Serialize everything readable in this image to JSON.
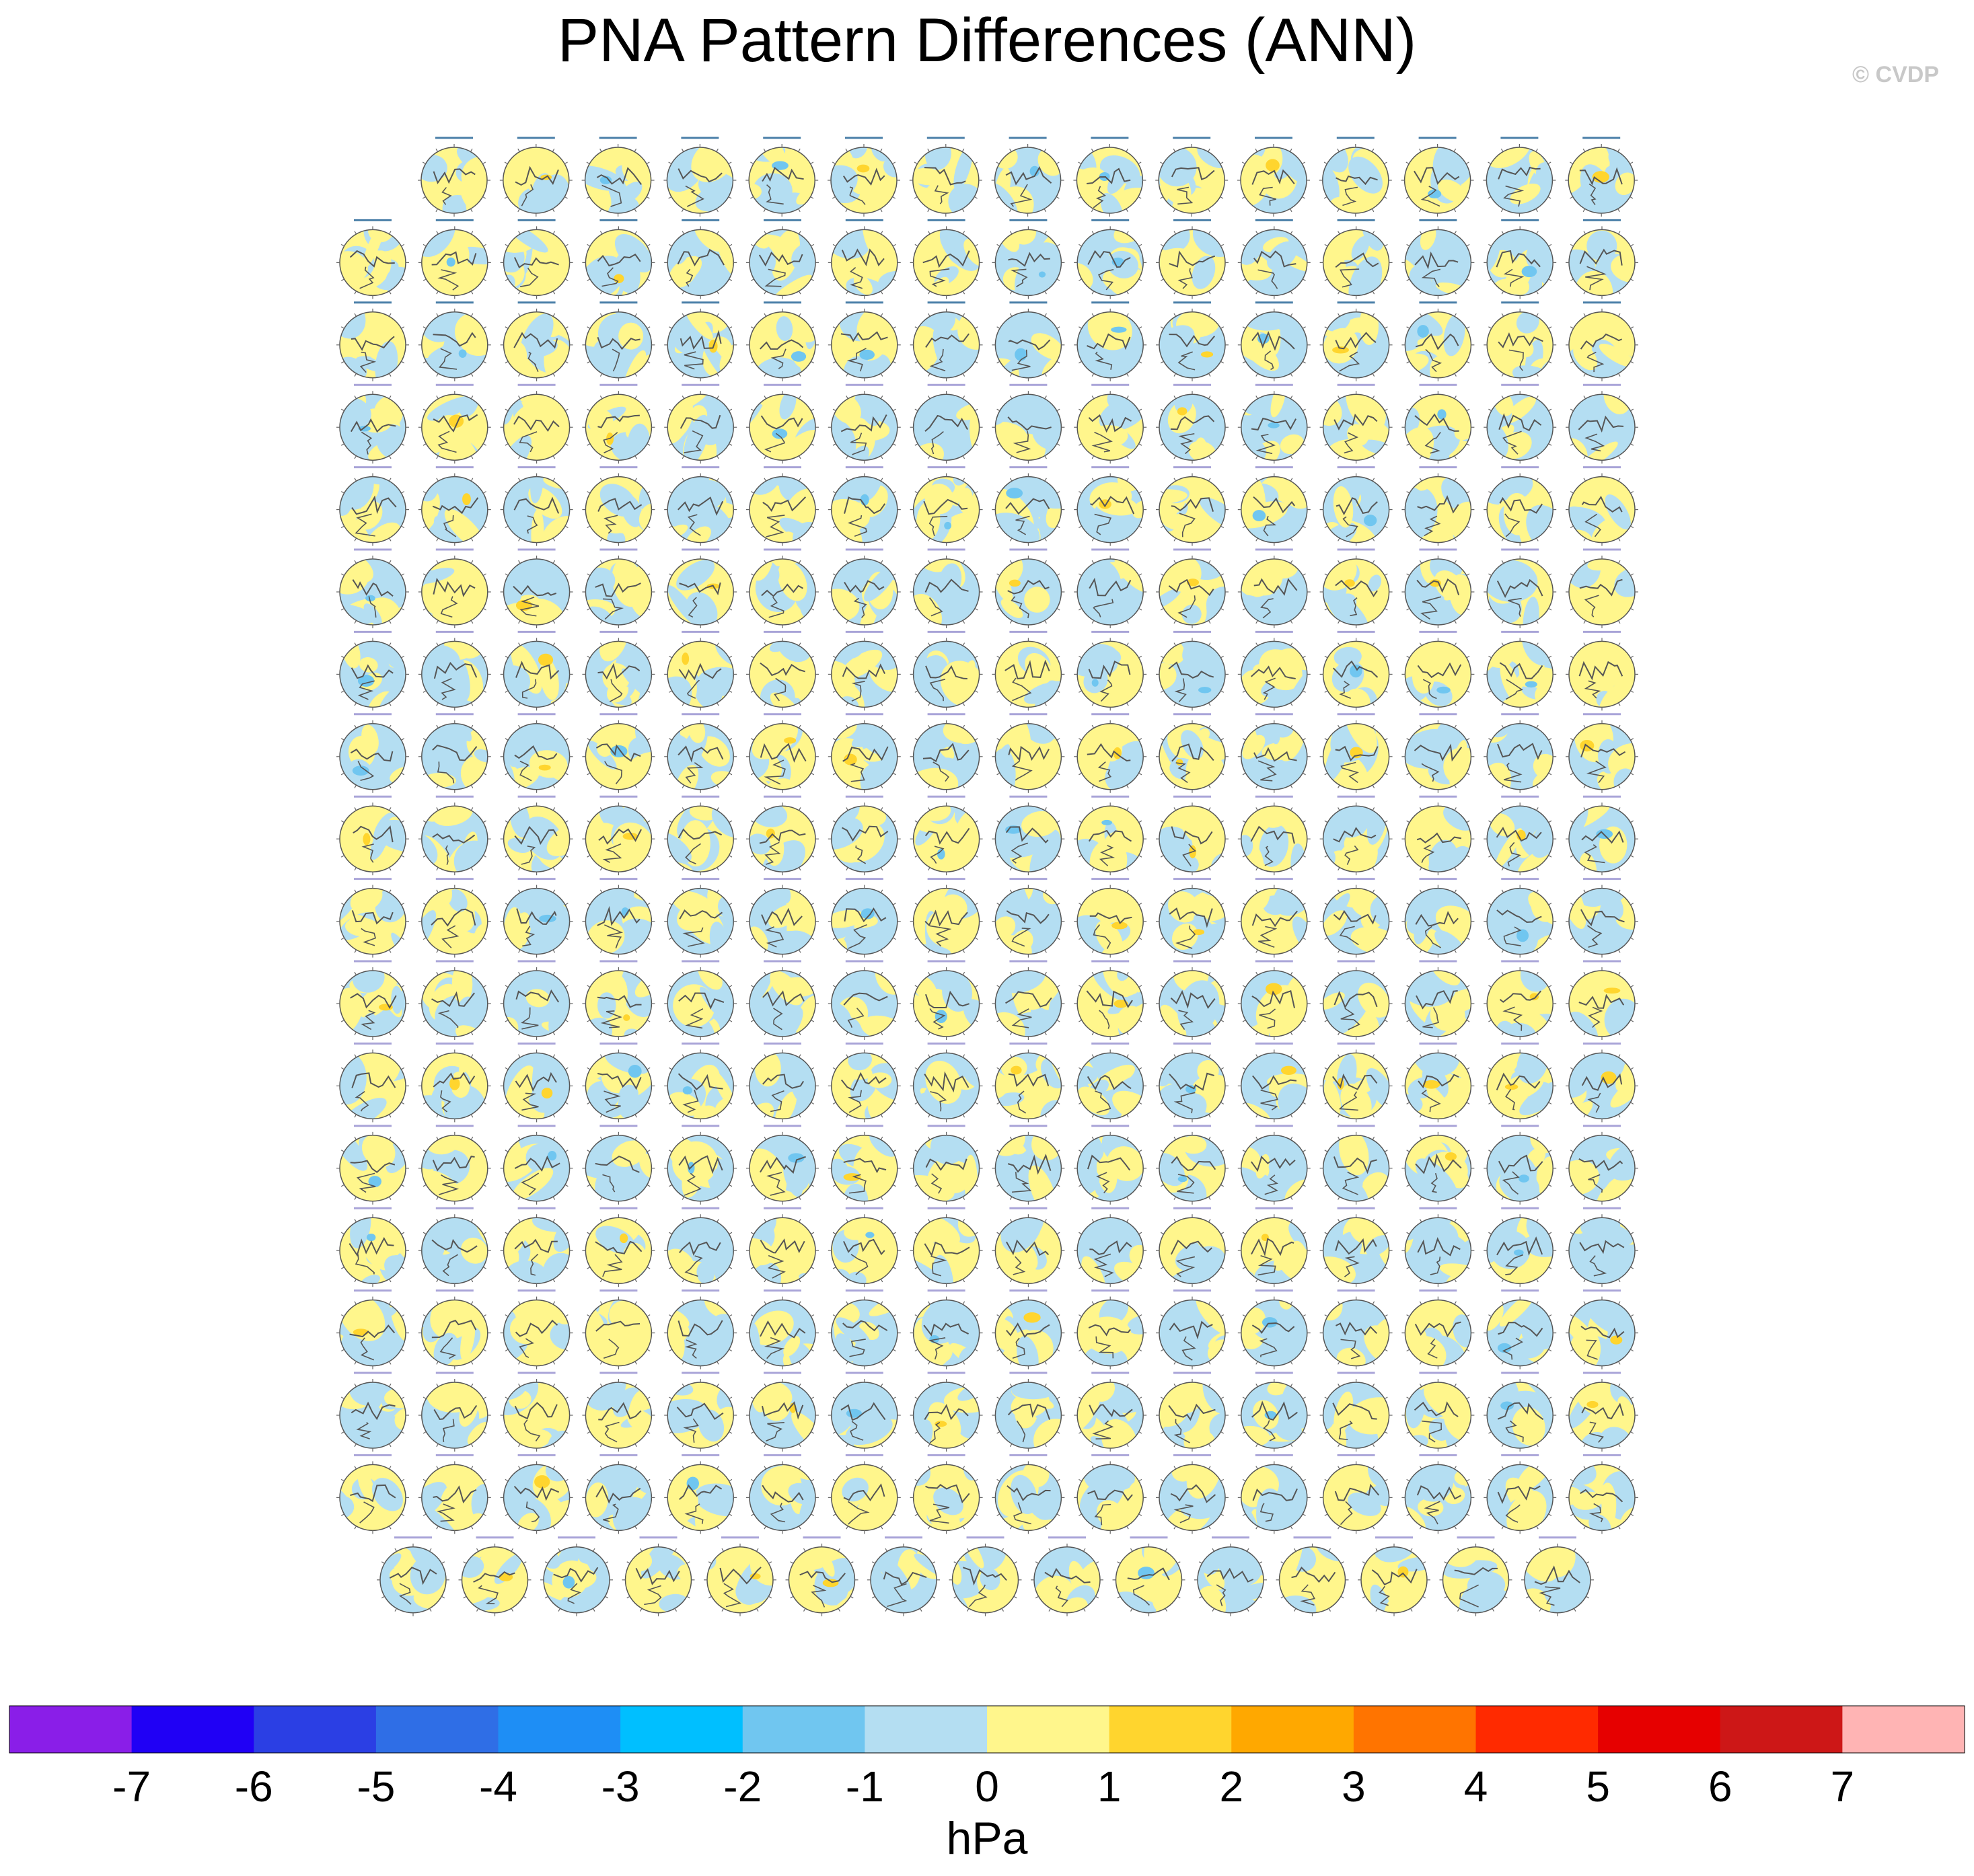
{
  "title": "PNA Pattern Differences (ANN)",
  "copyright": "© CVDP",
  "chart_data": {
    "type": "heatmap",
    "title": "PNA Pattern Differences (ANN)",
    "description_kind": "panel grid of polar-stereographic difference maps",
    "panel_rows": [
      15,
      16,
      16,
      16,
      16,
      16,
      16,
      16,
      16,
      16,
      16,
      16,
      16,
      16,
      16,
      16,
      16,
      15
    ],
    "panel_count": 286,
    "colorbar": {
      "units": "hPa",
      "levels": [
        -7,
        -6,
        -5,
        -4,
        -3,
        -2,
        -1,
        0,
        1,
        2,
        3,
        4,
        5,
        6,
        7
      ],
      "tick_labels": [
        "-7",
        "-6",
        "-5",
        "-4",
        "-3",
        "-2",
        "-1",
        "0",
        "1",
        "2",
        "3",
        "4",
        "5",
        "6",
        "7"
      ],
      "colors": [
        "#8a1ee8",
        "#2000f5",
        "#2b3fe4",
        "#2f6ee6",
        "#1e8ef5",
        "#00bfff",
        "#70c6f0",
        "#b4def2",
        "#fff68c",
        "#ffd52e",
        "#ffa800",
        "#ff7400",
        "#ff2a00",
        "#e60000",
        "#cd1717",
        "#ffb4b4"
      ]
    },
    "panel_palette": {
      "negative_small": "#b4def2",
      "negative_medium": "#70c6f0",
      "positive_small": "#fff68c",
      "positive_medium": "#ffd52e",
      "coast": "#555555"
    }
  }
}
